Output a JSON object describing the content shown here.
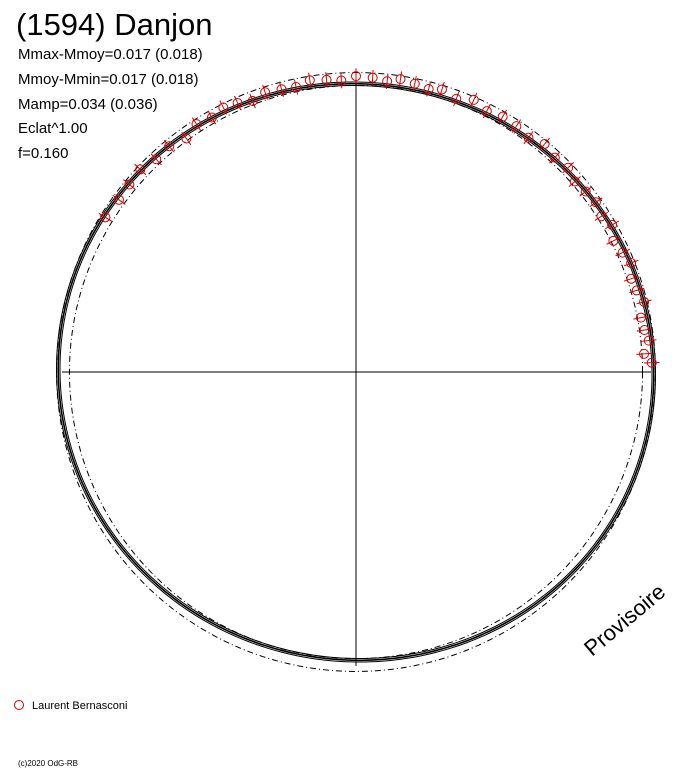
{
  "chart_data": {
    "type": "scatter",
    "title": "(1594) Danjon",
    "stats": [
      "Mmax-Mmoy=0.017 (0.018)",
      "Mmoy-Mmin=0.017 (0.018)",
      "Mamp=0.034 (0.036)",
      "Eclat^1.00",
      "f=0.160"
    ],
    "watermark": "Provisoire",
    "copyright": "(c)2020 OdG-RB",
    "legend": {
      "placement": "bottom-left",
      "entries": [
        {
          "name": "Laurent Bernasconi",
          "color": "#d40000",
          "marker": "open-circle"
        }
      ]
    },
    "xlabel": "",
    "ylabel": "",
    "grid": false,
    "model": {
      "mean": 1.0,
      "amplitude": 0.017
    },
    "series": [
      {
        "name": "Laurent Bernasconi",
        "color": "#d40000",
        "phase": [
          0.005,
          0.01,
          0.017,
          0.023,
          0.03,
          0.038,
          0.045,
          0.052,
          0.06,
          0.067,
          0.075,
          0.083,
          0.09,
          0.098,
          0.106,
          0.114,
          0.122,
          0.131,
          0.14,
          0.149,
          0.158,
          0.167,
          0.176,
          0.185,
          0.194,
          0.203,
          0.21,
          0.218,
          0.226,
          0.233,
          0.241,
          0.25,
          0.258,
          0.266,
          0.275,
          0.283,
          0.291,
          0.3,
          0.308,
          0.316,
          0.324,
          0.332,
          0.341,
          0.35,
          0.36,
          0.37,
          0.38,
          0.39,
          0.4,
          0.412
        ],
        "flux": [
          1.01,
          0.985,
          1.005,
          0.995,
          0.99,
          1.012,
          0.998,
          0.992,
          1.01,
          0.997,
          0.986,
          1.008,
          0.992,
          1.003,
          0.997,
          0.99,
          1.005,
          0.998,
          1.01,
          0.993,
          1.002,
          1.005,
          0.996,
          1.012,
          0.993,
          1.008,
          0.997,
          1.004,
          1.011,
          0.998,
          1.006,
          1.01,
          0.996,
          1.002,
          1.008,
          0.994,
          0.998,
          1.004,
          0.99,
          1.003,
          1.01,
          0.998,
          1.006,
          0.985,
          1.0,
          0.996,
          1.01,
          1.004,
          1.0,
          1.005
        ],
        "error": 0.012
      }
    ]
  }
}
